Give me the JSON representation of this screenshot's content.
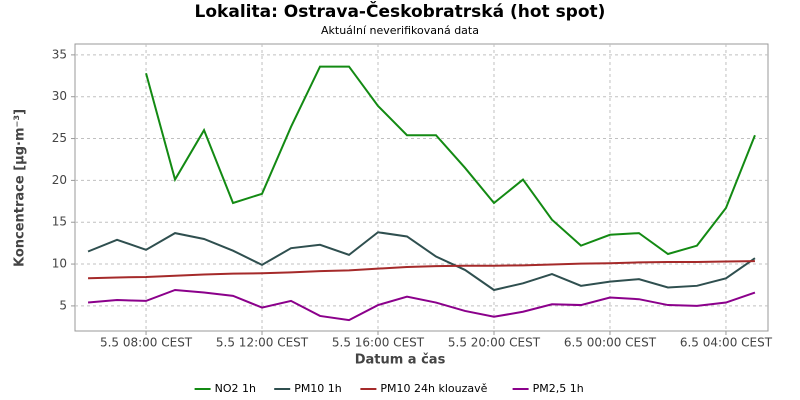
{
  "chart_data": {
    "type": "line",
    "title": "Lokalita: Ostrava-Českobratrská (hot spot)",
    "subtitle": "Aktuální neverifikovaná data",
    "x_label": "Datum a čas",
    "y_label": "Koncentrace [µg·m⁻³]",
    "x": [
      6,
      7,
      8,
      9,
      10,
      11,
      12,
      13,
      14,
      15,
      16,
      17,
      18,
      19,
      20,
      21,
      22,
      23,
      24,
      25,
      26,
      27,
      28,
      29
    ],
    "xlim": [
      5.55,
      29.45
    ],
    "xticks": [
      {
        "value": 8,
        "label": "5.5 08:00 CEST"
      },
      {
        "value": 12,
        "label": "5.5 12:00 CEST"
      },
      {
        "value": 16,
        "label": "5.5 16:00 CEST"
      },
      {
        "value": 20,
        "label": "5.5 20:00 CEST"
      },
      {
        "value": 24,
        "label": "6.5 00:00 CEST"
      },
      {
        "value": 28,
        "label": "6.5 04:00 CEST"
      }
    ],
    "ylim": [
      2,
      36.3
    ],
    "yticks": [
      5,
      10,
      15,
      20,
      25,
      30,
      35
    ],
    "grid": true,
    "legend": "bottom",
    "series": [
      {
        "name": "NO2 1h",
        "color": "#138a13",
        "values": [
          null,
          null,
          32.8,
          20.1,
          26.0,
          17.3,
          18.4,
          26.4,
          33.6,
          33.6,
          28.9,
          25.4,
          25.4,
          21.5,
          17.3,
          20.1,
          15.3,
          12.2,
          13.5,
          13.7,
          11.2,
          12.2,
          16.7,
          25.4
        ]
      },
      {
        "name": "PM10 1h",
        "color": "#2f4f4f",
        "values": [
          11.5,
          12.9,
          11.7,
          13.7,
          13.0,
          11.6,
          9.9,
          11.9,
          12.3,
          11.1,
          13.8,
          13.3,
          10.9,
          9.3,
          6.9,
          7.7,
          8.8,
          7.4,
          7.9,
          8.2,
          7.2,
          7.4,
          8.3,
          10.7
        ]
      },
      {
        "name": "PM10 24h klouzavě",
        "color": "#a52a2a",
        "values": [
          8.3,
          8.4,
          8.45,
          8.6,
          8.75,
          8.85,
          8.9,
          9.0,
          9.15,
          9.25,
          9.45,
          9.65,
          9.75,
          9.8,
          9.8,
          9.85,
          9.95,
          10.05,
          10.1,
          10.2,
          10.25,
          10.25,
          10.3,
          10.35
        ]
      },
      {
        "name": "PM2,5 1h",
        "color": "#8b008b",
        "values": [
          5.4,
          5.7,
          5.6,
          6.9,
          6.6,
          6.2,
          4.8,
          5.6,
          3.8,
          3.3,
          5.1,
          6.1,
          5.4,
          4.4,
          3.7,
          4.3,
          5.2,
          5.1,
          6.0,
          5.8,
          5.1,
          5.0,
          5.4,
          6.6
        ]
      }
    ]
  }
}
